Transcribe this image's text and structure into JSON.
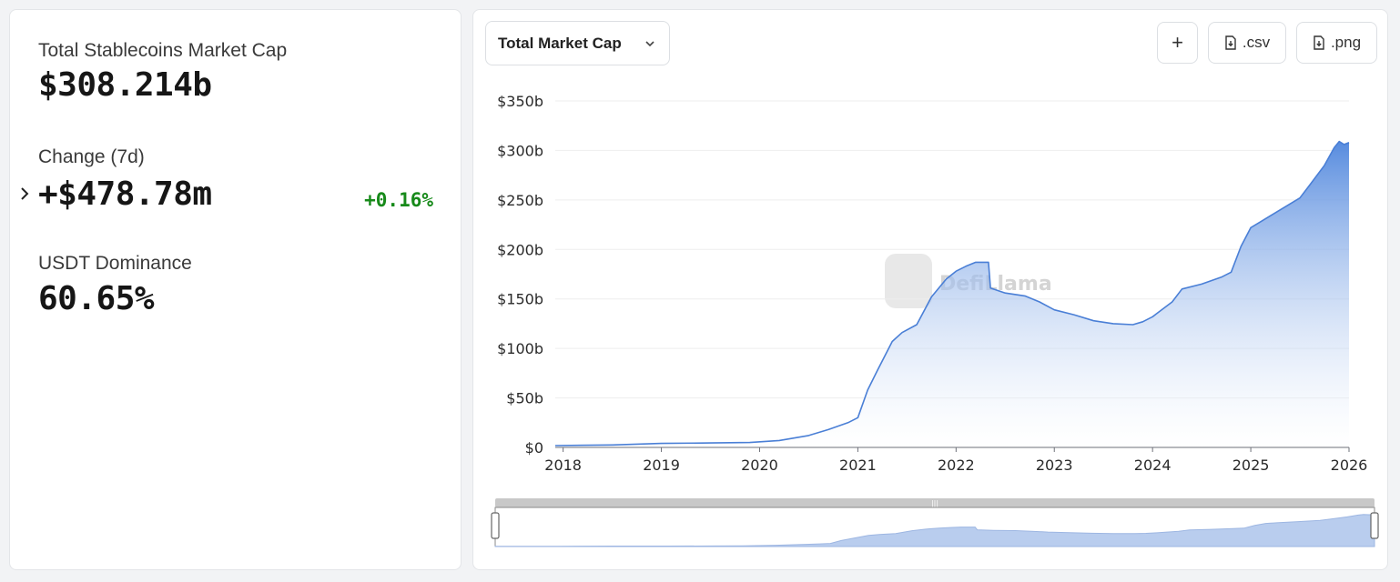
{
  "stats": {
    "market_cap_label": "Total Stablecoins Market Cap",
    "market_cap_value": "$308.214b",
    "change_label": "Change (7d)",
    "change_value": "+$478.78m",
    "change_pct": "+0.16%",
    "dominance_label": "USDT Dominance",
    "dominance_value": "60.65%"
  },
  "toolbar": {
    "metric_select": "Total Market Cap",
    "add_label": "+",
    "csv_label": ".csv",
    "png_label": ".png"
  },
  "watermark": "DefiLlama",
  "colors": {
    "positive": "#178a1a",
    "line": "#4a7fd6",
    "fill_top": "#5b8fe0"
  },
  "chart_data": {
    "type": "area",
    "title": "",
    "xlabel": "",
    "ylabel": "",
    "x_unit": "year",
    "y_unit": "USD billions",
    "xlim": [
      2017.92,
      2026.0
    ],
    "ylim": [
      0,
      350
    ],
    "y_ticks": [
      0,
      50,
      100,
      150,
      200,
      250,
      300,
      350
    ],
    "y_tick_labels": [
      "$0",
      "$50b",
      "$100b",
      "$150b",
      "$200b",
      "$250b",
      "$300b",
      "$350b"
    ],
    "x_ticks": [
      2018,
      2019,
      2020,
      2021,
      2022,
      2023,
      2024,
      2025,
      2026
    ],
    "x_tick_labels": [
      "2018",
      "2019",
      "2020",
      "2021",
      "2022",
      "2023",
      "2024",
      "2025",
      "2026"
    ],
    "grid": true,
    "series": [
      {
        "x": [
          2017.92,
          2018.5,
          2019.0,
          2019.5,
          2019.9,
          2020.2,
          2020.5,
          2020.7,
          2020.9,
          2021.0,
          2021.1,
          2021.2,
          2021.35,
          2021.45,
          2021.6,
          2021.75,
          2021.9,
          2022.0,
          2022.1,
          2022.2,
          2022.33,
          2022.35,
          2022.5,
          2022.7,
          2022.85,
          2023.0,
          2023.2,
          2023.4,
          2023.6,
          2023.8,
          2023.9,
          2024.0,
          2024.2,
          2024.3,
          2024.5,
          2024.7,
          2024.8,
          2024.9,
          2025.0,
          2025.1,
          2025.3,
          2025.5,
          2025.6,
          2025.75,
          2025.85,
          2025.9,
          2025.95,
          2026.0
        ],
        "values": [
          1.8,
          2.5,
          4.0,
          4.5,
          5.0,
          7.0,
          12.0,
          18.0,
          25.0,
          30.0,
          58.0,
          78.0,
          107.0,
          116.0,
          124.0,
          152.0,
          170.0,
          178.0,
          183.0,
          187.0,
          187.0,
          161.0,
          156.0,
          153.0,
          147.0,
          139.0,
          134.0,
          128.0,
          125.0,
          124.0,
          127.0,
          132.0,
          147.0,
          160.0,
          165.0,
          172.0,
          177.0,
          203.0,
          222.0,
          228.0,
          240.0,
          252.0,
          265.0,
          285.0,
          303.0,
          309.0,
          306.0,
          308.0
        ]
      }
    ]
  }
}
